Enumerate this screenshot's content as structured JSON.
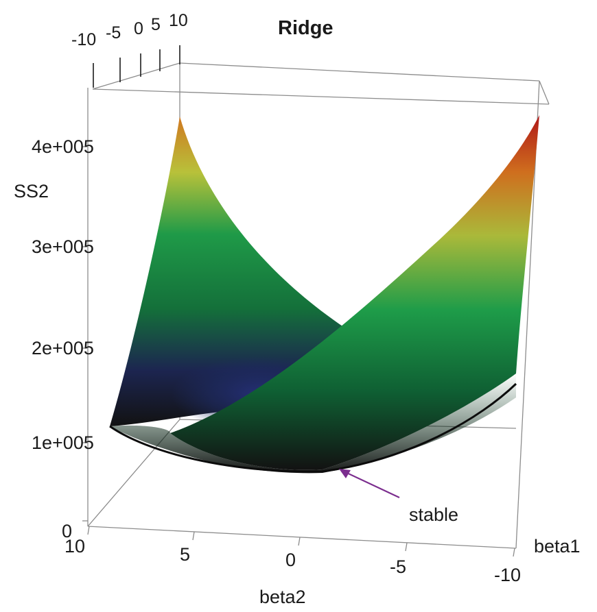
{
  "chart_data": {
    "type": "surface3d",
    "title": "Ridge",
    "zlabel": "SS2",
    "xlabel": "beta2",
    "ylabel": "beta1",
    "z_ticks": [
      "0",
      "1e+005",
      "2e+005",
      "3e+005",
      "4e+005"
    ],
    "x_ticks": [
      "10",
      "5",
      "0",
      "-5",
      "-10"
    ],
    "y_ticks": [
      "-10",
      "-5",
      "0",
      "5",
      "10"
    ],
    "x_range": [
      -10,
      10
    ],
    "y_range": [
      -10,
      10
    ],
    "z_range": [
      0,
      450000
    ],
    "colormap": [
      "#141414",
      "#1f2a5e",
      "#14743c",
      "#1ea04a",
      "#b9c23a",
      "#d4781e",
      "#b31a1a"
    ],
    "annotation": {
      "text": "stable",
      "color": "#7b2d8e"
    }
  }
}
